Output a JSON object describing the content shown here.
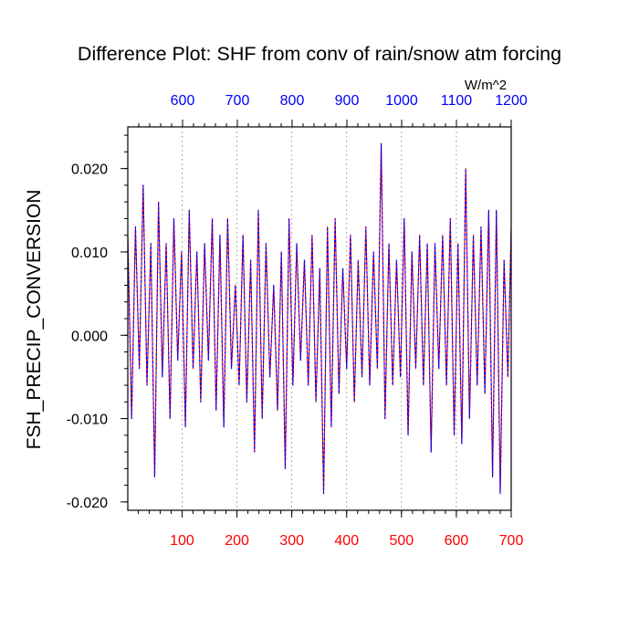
{
  "chart_data": {
    "type": "line",
    "title": "Difference Plot: SHF from conv of rain/snow atm forcing",
    "ylabel": "FSH_PRECIP_CONVERSION",
    "xlim": [
      1,
      700
    ],
    "ylim": [
      -0.021,
      0.025
    ],
    "bottom_axis": {
      "ticks": [
        100,
        200,
        300,
        400,
        500,
        600,
        700
      ],
      "tick_labels": [
        "100",
        "200",
        "300",
        "400",
        "500",
        "600",
        "700"
      ],
      "color": "#ff0000"
    },
    "top_axis": {
      "units_label": "W/m^2",
      "range": [
        500,
        1200
      ],
      "ticks": [
        600,
        700,
        800,
        900,
        1000,
        1100,
        1200
      ],
      "tick_labels": [
        "600",
        "700",
        "800",
        "900",
        "1000",
        "1100",
        "1200"
      ],
      "color": "#0000ff"
    },
    "left_axis": {
      "ticks": [
        -0.02,
        -0.01,
        0.0,
        0.01,
        0.02
      ],
      "tick_labels": [
        "-0.020",
        "-0.010",
        "0.000",
        "0.010",
        "0.020"
      ]
    },
    "vertical_grid": true,
    "series": [
      {
        "name": "series-red",
        "color": "#ff0000",
        "style": "solid"
      },
      {
        "name": "series-blue",
        "color": "#0000ff",
        "style": "dashed"
      }
    ],
    "x": [
      1,
      8,
      15,
      22,
      29,
      36,
      43,
      50,
      57,
      64,
      71,
      78,
      85,
      92,
      99,
      106,
      113,
      120,
      127,
      134,
      141,
      148,
      155,
      162,
      169,
      176,
      183,
      190,
      197,
      204,
      211,
      218,
      225,
      232,
      239,
      246,
      253,
      260,
      267,
      274,
      281,
      288,
      295,
      302,
      309,
      316,
      323,
      330,
      337,
      344,
      351,
      358,
      365,
      372,
      379,
      386,
      393,
      400,
      407,
      414,
      421,
      428,
      435,
      442,
      449,
      456,
      463,
      470,
      477,
      484,
      491,
      498,
      505,
      512,
      519,
      526,
      533,
      540,
      547,
      554,
      561,
      568,
      575,
      582,
      589,
      596,
      603,
      610,
      617,
      624,
      631,
      638,
      645,
      652,
      659,
      666,
      673,
      680,
      687,
      694,
      700
    ],
    "values": [
      0.012,
      -0.01,
      0.013,
      -0.004,
      0.018,
      -0.006,
      0.011,
      -0.017,
      0.016,
      -0.005,
      0.011,
      -0.01,
      0.014,
      -0.003,
      0.01,
      -0.011,
      0.015,
      -0.004,
      0.01,
      -0.008,
      0.011,
      -0.003,
      0.014,
      -0.009,
      0.012,
      -0.011,
      0.014,
      -0.004,
      0.006,
      -0.006,
      0.012,
      -0.008,
      0.009,
      -0.014,
      0.015,
      -0.01,
      0.011,
      -0.005,
      0.006,
      -0.009,
      0.01,
      -0.016,
      0.014,
      -0.006,
      0.011,
      -0.003,
      0.009,
      -0.006,
      0.012,
      -0.008,
      0.008,
      -0.019,
      0.013,
      -0.011,
      0.014,
      -0.007,
      0.008,
      -0.004,
      0.012,
      -0.008,
      0.009,
      -0.005,
      0.013,
      -0.006,
      0.01,
      -0.004,
      0.023,
      -0.01,
      0.011,
      -0.006,
      0.009,
      -0.005,
      0.014,
      -0.012,
      0.01,
      -0.004,
      0.012,
      -0.006,
      0.011,
      -0.014,
      0.011,
      -0.004,
      0.012,
      -0.006,
      0.014,
      -0.012,
      0.011,
      -0.013,
      0.02,
      -0.01,
      0.012,
      -0.006,
      0.013,
      -0.007,
      0.015,
      -0.017,
      0.015,
      -0.019,
      0.009,
      -0.005,
      0.013
    ]
  }
}
